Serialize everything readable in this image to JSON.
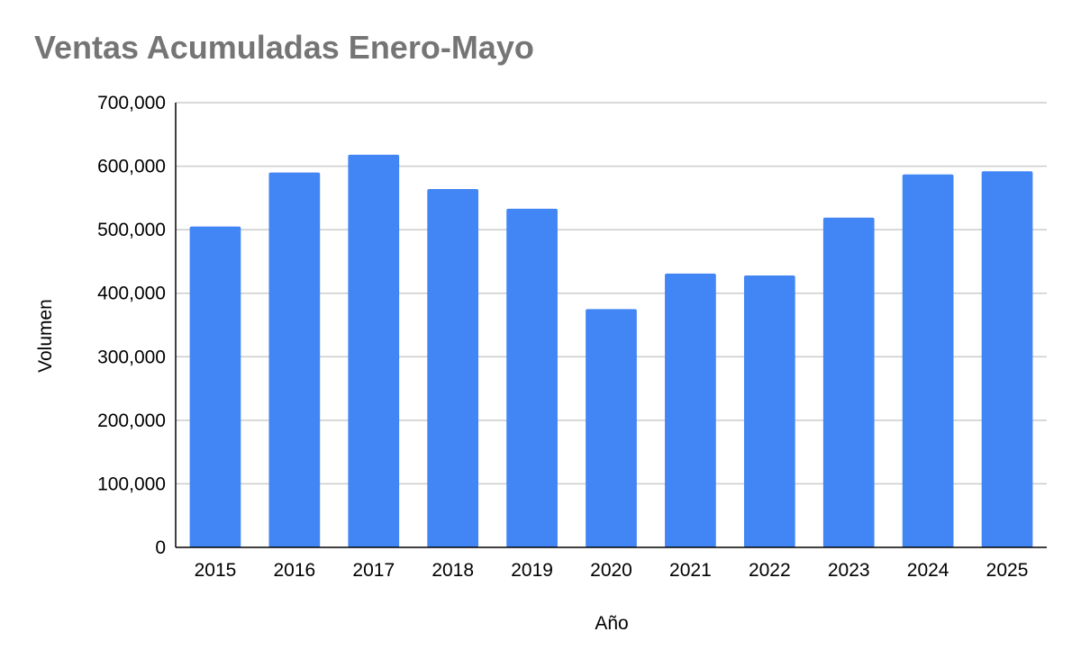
{
  "chart_data": {
    "type": "bar",
    "title": "Ventas Acumuladas Enero-Mayo",
    "xlabel": "Año",
    "ylabel": "Volumen",
    "categories": [
      "2015",
      "2016",
      "2017",
      "2018",
      "2019",
      "2020",
      "2021",
      "2022",
      "2023",
      "2024",
      "2025"
    ],
    "values": [
      505000,
      590000,
      618000,
      564000,
      533000,
      375000,
      431000,
      428000,
      519000,
      587000,
      592000
    ],
    "ylim": [
      0,
      700000
    ],
    "yticks": [
      0,
      100000,
      200000,
      300000,
      400000,
      500000,
      600000,
      700000
    ],
    "ytick_labels": [
      "0",
      "100,000",
      "200,000",
      "300,000",
      "400,000",
      "500,000",
      "600,000",
      "700,000"
    ],
    "grid": true,
    "legend": "none",
    "bar_color": "#4285f4",
    "grid_color": "#cccccc",
    "axis_color": "#000000",
    "title_color": "#757575"
  }
}
